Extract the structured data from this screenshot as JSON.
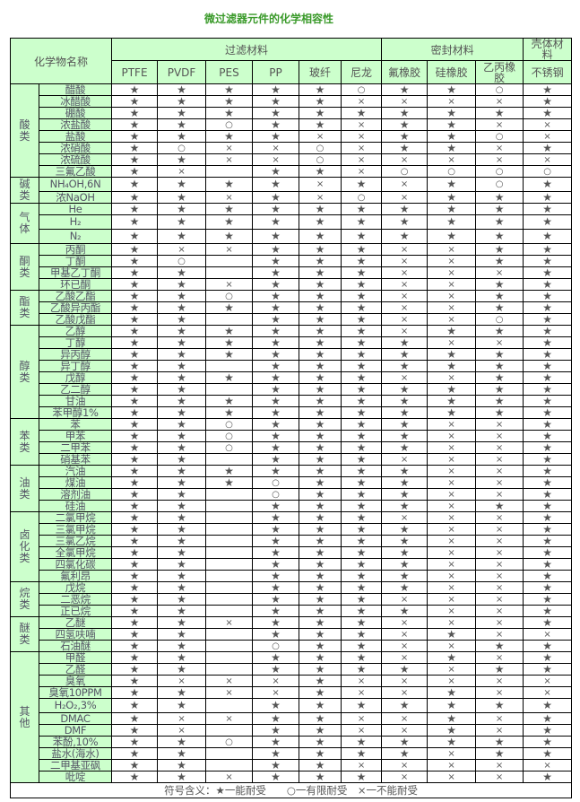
{
  "title": "微过滤器元件的化学相容性",
  "header": {
    "chemical_name": "化学物名称",
    "groups": [
      {
        "label": "过滤材料",
        "span": 6
      },
      {
        "label": "密封材料",
        "span": 3
      },
      {
        "label": "壳体材料",
        "span": 1
      }
    ],
    "materials": [
      "PTFE",
      "PVDF",
      "PES",
      "PP",
      "玻纤",
      "尼龙",
      "氟橡胶",
      "硅橡胶",
      "乙丙橡胶",
      "不锈钢"
    ]
  },
  "categories": [
    {
      "label": "酸类",
      "rows": [
        {
          "name": "醋酸",
          "v": [
            "★",
            "★",
            "★",
            "★",
            "★",
            "○",
            "★",
            "★",
            "○",
            "★"
          ]
        },
        {
          "name": "冰醋酸",
          "v": [
            "★",
            "★",
            "★",
            "★",
            "★",
            "×",
            "×",
            "×",
            "×",
            "★"
          ]
        },
        {
          "name": "硼酸",
          "v": [
            "★",
            "★",
            "★",
            "★",
            "★",
            "★",
            "★",
            "★",
            "★",
            "★"
          ]
        },
        {
          "name": "浓盐酸",
          "v": [
            "★",
            "★",
            "○",
            "★",
            "★",
            "×",
            "★",
            "★",
            "×",
            "×"
          ]
        },
        {
          "name": "盐酸",
          "v": [
            "★",
            "★",
            "★",
            "★",
            "×",
            "×",
            "★",
            "★",
            "○",
            "×"
          ]
        },
        {
          "name": "浓硝酸",
          "v": [
            "★",
            "○",
            "×",
            "×",
            "○",
            "×",
            "★",
            "★",
            "×",
            "★"
          ]
        },
        {
          "name": "浓硫酸",
          "v": [
            "★",
            "★",
            "×",
            "×",
            "○",
            "×",
            "×",
            "×",
            "×",
            "×"
          ]
        },
        {
          "name": "三氟乙酸",
          "v": [
            "★",
            "×",
            "",
            "★",
            "★",
            "×",
            "○",
            "○",
            "○",
            "○"
          ]
        }
      ]
    },
    {
      "label": "碱类",
      "rows": [
        {
          "name": "NH₄OH,6N",
          "tall": true,
          "v": [
            "★",
            "★",
            "★",
            "★",
            "×",
            "★",
            "×",
            "★",
            "○",
            "★"
          ]
        },
        {
          "name": "浓NaOH",
          "v": [
            "★",
            "★",
            "×",
            "★",
            "×",
            "○",
            "×",
            "★",
            "★",
            "★"
          ]
        }
      ]
    },
    {
      "label": "气体",
      "rows": [
        {
          "name": "He",
          "v": [
            "★",
            "★",
            "★",
            "★",
            "★",
            "★",
            "★",
            "★",
            "★",
            "★"
          ]
        },
        {
          "name": "H₂",
          "tall": true,
          "v": [
            "★",
            "★",
            "★",
            "★",
            "★",
            "★",
            "★",
            "★",
            "★",
            "★"
          ]
        },
        {
          "name": "N₂",
          "tall": true,
          "v": [
            "★",
            "★",
            "★",
            "★",
            "★",
            "★",
            "★",
            "★",
            "★",
            "★"
          ]
        }
      ]
    },
    {
      "label": "酮类",
      "rows": [
        {
          "name": "丙酮",
          "v": [
            "★",
            "×",
            "×",
            "★",
            "★",
            "★",
            "×",
            "×",
            "★",
            "★"
          ]
        },
        {
          "name": "丁酮",
          "v": [
            "★",
            "○",
            "",
            "★",
            "★",
            "★",
            "×",
            "×",
            "★",
            "★"
          ]
        },
        {
          "name": "甲基乙丁酮",
          "v": [
            "★",
            "★",
            "",
            "★",
            "★",
            "★",
            "×",
            "×",
            "×",
            "★"
          ]
        },
        {
          "name": "环已酮",
          "v": [
            "★",
            "★",
            "×",
            "★",
            "★",
            "★",
            "×",
            "×",
            "★",
            "★"
          ]
        }
      ]
    },
    {
      "label": "酯类",
      "rows": [
        {
          "name": "乙酸乙酯",
          "v": [
            "★",
            "★",
            "○",
            "★",
            "★",
            "★",
            "×",
            "×",
            "★",
            "★"
          ]
        },
        {
          "name": "乙酸异丙酯",
          "v": [
            "★",
            "★",
            "★",
            "★",
            "★",
            "★",
            "×",
            "×",
            "★",
            "★"
          ]
        },
        {
          "name": "乙酸戊酯",
          "v": [
            "★",
            "★",
            "",
            "★",
            "★",
            "★",
            "×",
            "×",
            "○",
            "★"
          ]
        }
      ]
    },
    {
      "label": "醇类",
      "rows": [
        {
          "name": "乙醇",
          "v": [
            "★",
            "★",
            "★",
            "★",
            "★",
            "★",
            "×",
            "★",
            "★",
            "★"
          ]
        },
        {
          "name": "丁醇",
          "v": [
            "★",
            "★",
            "★",
            "★",
            "★",
            "★",
            "★",
            "×",
            "×",
            "★"
          ]
        },
        {
          "name": "异丙醇",
          "v": [
            "★",
            "★",
            "★",
            "★",
            "★",
            "★",
            "★",
            "★",
            "★",
            "★"
          ]
        },
        {
          "name": "异丁醇",
          "v": [
            "★",
            "★",
            "",
            "★",
            "★",
            "★",
            "★",
            "★",
            "★",
            "★"
          ]
        },
        {
          "name": "戊醇",
          "v": [
            "★",
            "★",
            "★",
            "★",
            "★",
            "★",
            "×",
            "×",
            "★",
            "★"
          ]
        },
        {
          "name": "乙二醇",
          "v": [
            "★",
            "★",
            "",
            "★",
            "★",
            "★",
            "★",
            "★",
            "★",
            "★"
          ]
        },
        {
          "name": "甘油",
          "v": [
            "★",
            "★",
            "★",
            "★",
            "★",
            "★",
            "★",
            "★",
            "★",
            "★"
          ]
        },
        {
          "name": "苯甲醇1%",
          "v": [
            "★",
            "★",
            "★",
            "★",
            "★",
            "★",
            "★",
            "★",
            "★",
            "★"
          ]
        }
      ]
    },
    {
      "label": "苯类",
      "rows": [
        {
          "name": "苯",
          "v": [
            "★",
            "★",
            "○",
            "★",
            "★",
            "★",
            "★",
            "×",
            "×",
            "★"
          ]
        },
        {
          "name": "甲苯",
          "v": [
            "★",
            "★",
            "○",
            "★",
            "★",
            "★",
            "★",
            "×",
            "×",
            "★"
          ]
        },
        {
          "name": "二甲苯",
          "v": [
            "★",
            "★",
            "○",
            "★",
            "★",
            "★",
            "★",
            "×",
            "×",
            "★"
          ]
        },
        {
          "name": "硝基苯",
          "v": [
            "★",
            "★",
            "",
            "★",
            "★",
            "★",
            "×",
            "×",
            "×",
            "★"
          ]
        }
      ]
    },
    {
      "label": "油类",
      "rows": [
        {
          "name": "汽油",
          "v": [
            "★",
            "★",
            "★",
            "★",
            "★",
            "★",
            "★",
            "×",
            "×",
            "★"
          ]
        },
        {
          "name": "煤油",
          "v": [
            "★",
            "★",
            "★",
            "○",
            "★",
            "★",
            "★",
            "×",
            "×",
            "★"
          ]
        },
        {
          "name": "溶剂油",
          "v": [
            "★",
            "★",
            "",
            "○",
            "★",
            "★",
            "★",
            "×",
            "×",
            "★"
          ]
        },
        {
          "name": "硅油",
          "v": [
            "★",
            "★",
            "",
            "★",
            "★",
            "★",
            "★",
            "×",
            "★",
            "★"
          ]
        }
      ]
    },
    {
      "label": "卤化类",
      "rows": [
        {
          "name": "二氯甲烷",
          "v": [
            "★",
            "★",
            "",
            "★",
            "★",
            "★",
            "×",
            "×",
            "×",
            "★"
          ]
        },
        {
          "name": "三氯甲烷",
          "v": [
            "★",
            "★",
            "",
            "★",
            "★",
            "★",
            "★",
            "×",
            "×",
            "★"
          ]
        },
        {
          "name": "三氯乙烷",
          "v": [
            "★",
            "★",
            "",
            "★",
            "★",
            "★",
            "★",
            "×",
            "×",
            "★"
          ]
        },
        {
          "name": "全氯甲烷",
          "v": [
            "★",
            "★",
            "",
            "★",
            "★",
            "★",
            "★",
            "×",
            "×",
            "★"
          ]
        },
        {
          "name": "四氯化碳",
          "v": [
            "★",
            "★",
            "",
            "★",
            "★",
            "★",
            "★",
            "×",
            "×",
            "★"
          ]
        },
        {
          "name": "氟利昂",
          "v": [
            "★",
            "★",
            "",
            "★",
            "★",
            "★",
            "★",
            "×",
            "×",
            "★"
          ]
        }
      ]
    },
    {
      "label": "烷类",
      "rows": [
        {
          "name": "戊烷",
          "v": [
            "★",
            "★",
            "",
            "★",
            "★",
            "★",
            "★",
            "×",
            "×",
            "★"
          ]
        },
        {
          "name": "二恶烷",
          "v": [
            "★",
            "★",
            "",
            "★",
            "★",
            "★",
            "×",
            "×",
            "×",
            "★"
          ]
        },
        {
          "name": "正已烷",
          "v": [
            "★",
            "★",
            "",
            "★",
            "★",
            "★",
            "★",
            "×",
            "×",
            "★"
          ]
        }
      ]
    },
    {
      "label": "醚类",
      "rows": [
        {
          "name": "乙醚",
          "v": [
            "★",
            "★",
            "×",
            "★",
            "★",
            "★",
            "×",
            "×",
            "×",
            "★"
          ]
        },
        {
          "name": "四氢呋喃",
          "v": [
            "★",
            "★",
            "",
            "★",
            "★",
            "★",
            "×",
            "★",
            "×",
            "×"
          ]
        },
        {
          "name": "石油醚",
          "v": [
            "★",
            "★",
            "",
            "○",
            "★",
            "★",
            "×",
            "×",
            "★",
            "★"
          ]
        }
      ]
    },
    {
      "label": "其他",
      "rows": [
        {
          "name": "甲醛",
          "v": [
            "★",
            "★",
            "",
            "★",
            "★",
            "★",
            "×",
            "★",
            "×",
            "★"
          ]
        },
        {
          "name": "乙醛",
          "v": [
            "★",
            "★",
            "",
            "★",
            "★",
            "★",
            "★",
            "×",
            "★",
            "★"
          ]
        },
        {
          "name": "臭氧",
          "v": [
            "★",
            "×",
            "×",
            "×",
            "★",
            "×",
            "×",
            "×",
            "×",
            "×"
          ]
        },
        {
          "name": "臭氧10PPM",
          "v": [
            "★",
            "★",
            "×",
            "×",
            "★",
            "×",
            "×",
            "★",
            "×",
            "×"
          ]
        },
        {
          "name": "H₂O₂,3%",
          "tall": true,
          "v": [
            "★",
            "★",
            "",
            "★",
            "★",
            "★",
            "★",
            "★",
            "★",
            "★"
          ]
        },
        {
          "name": "DMAC",
          "v": [
            "★",
            "×",
            "×",
            "★",
            "★",
            "×",
            "×",
            "★",
            "×",
            "★"
          ]
        },
        {
          "name": "DMF",
          "v": [
            "★",
            "×",
            "",
            "★",
            "★",
            "×",
            "×",
            "★",
            "×",
            "★"
          ]
        },
        {
          "name": "苯酚,10%",
          "v": [
            "★",
            "★",
            "○",
            "★",
            "★",
            "★",
            "★",
            "★",
            "★",
            "★"
          ]
        },
        {
          "name": "盐水(海水)",
          "v": [
            "★",
            "★",
            "",
            "★",
            "★",
            "★",
            "★",
            "×",
            "★",
            "★"
          ]
        },
        {
          "name": "二甲基亚砜",
          "v": [
            "★",
            "★",
            "",
            "★",
            "★",
            "×",
            "×",
            "×",
            "×",
            "×"
          ]
        },
        {
          "name": "吡啶",
          "v": [
            "★",
            "★",
            "×",
            "★",
            "★",
            "★",
            "×",
            "×",
            "×",
            "★"
          ]
        }
      ]
    }
  ],
  "legend": "符号含义：★一能耐受　　○一有限耐受　×一不能耐受"
}
